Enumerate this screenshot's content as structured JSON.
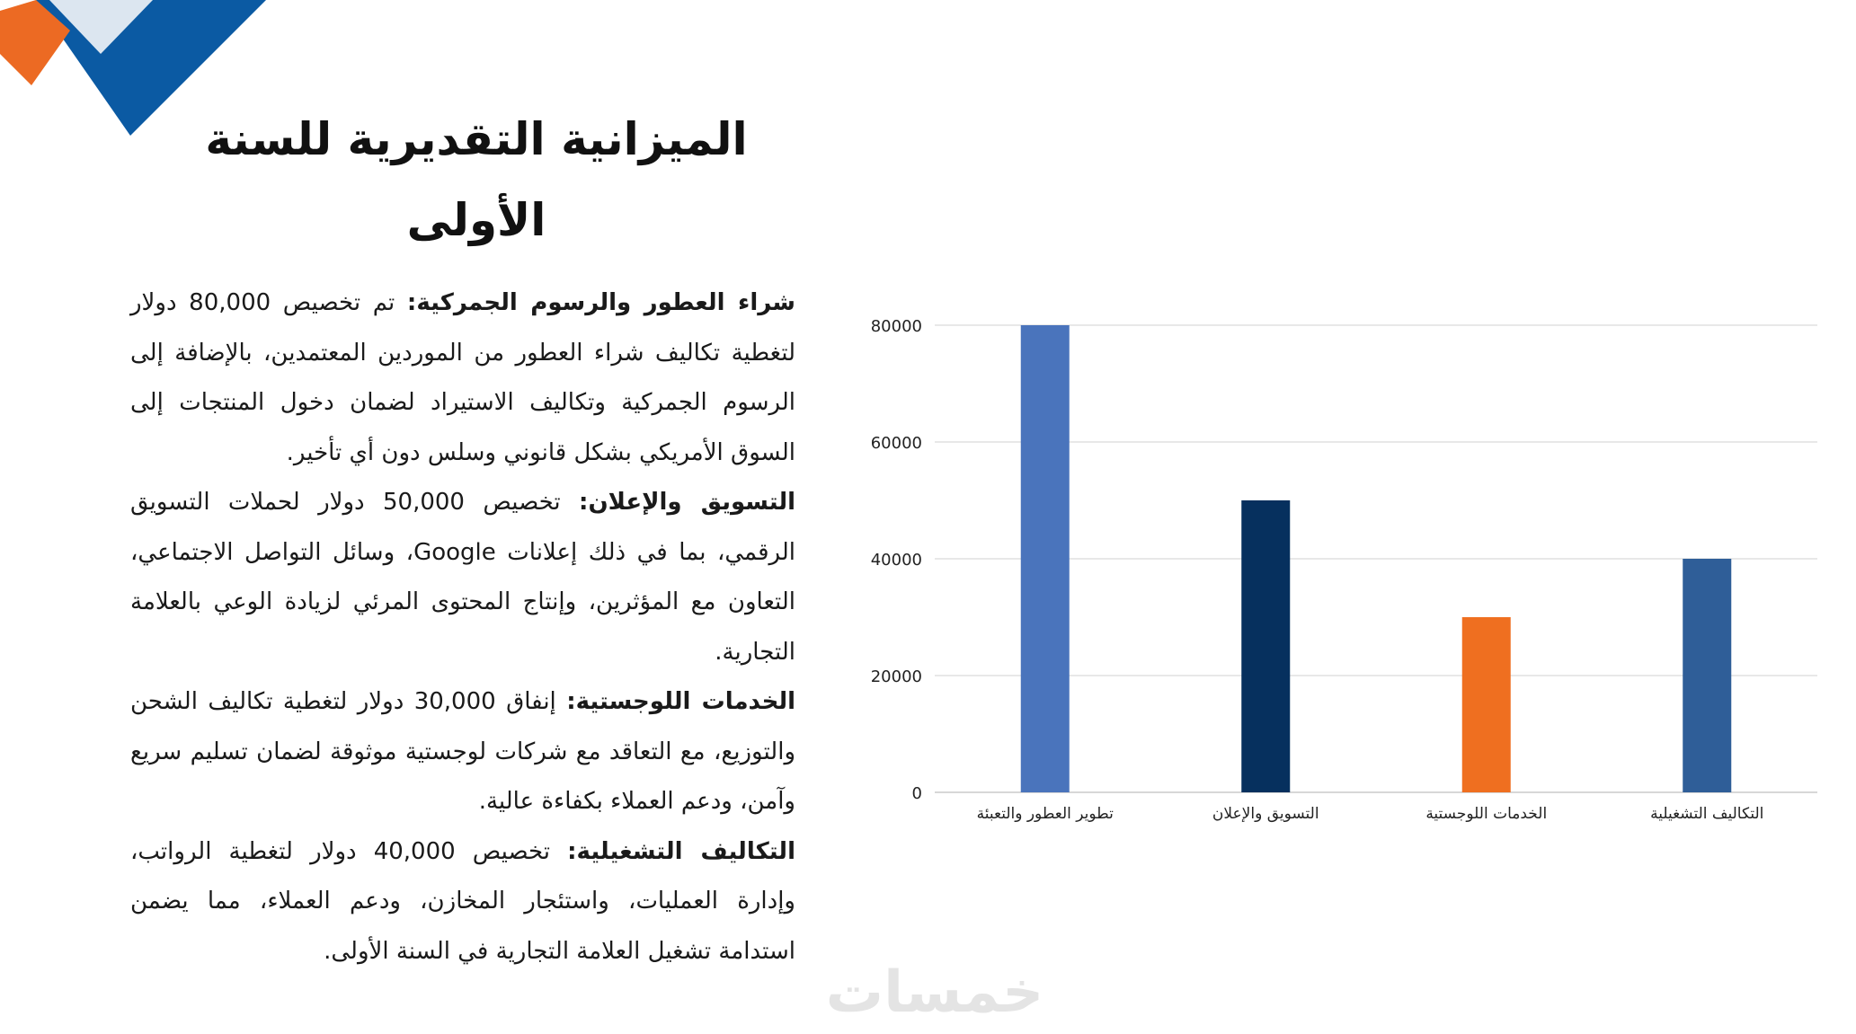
{
  "slide": {
    "title": "الميزانية التقديرية للسنة الأولى",
    "sections": [
      {
        "heading": "شراء العطور والرسوم الجمركية:",
        "text": "تم تخصيص 80,000 دولار لتغطية تكاليف شراء العطور من الموردين المعتمدين، بالإضافة إلى الرسوم الجمركية وتكاليف الاستيراد لضمان دخول المنتجات إلى السوق الأمريكي بشكل قانوني وسلس دون أي تأخير."
      },
      {
        "heading": "التسويق والإعلان:",
        "text": "تخصيص 50,000 دولار لحملات التسويق الرقمي، بما في ذلك إعلانات Google، وسائل التواصل الاجتماعي، التعاون مع المؤثرين، وإنتاج المحتوى المرئي لزيادة الوعي بالعلامة التجارية."
      },
      {
        "heading": "الخدمات اللوجستية:",
        "text": "إنفاق 30,000 دولار لتغطية تكاليف الشحن والتوزيع، مع التعاقد مع شركات لوجستية موثوقة لضمان تسليم سريع وآمن، ودعم العملاء بكفاءة عالية."
      },
      {
        "heading": "التكاليف التشغيلية:",
        "text": "تخصيص 40,000 دولار لتغطية الرواتب، وإدارة العمليات، واستئجار المخازن، ودعم العملاء، مما يضمن استدامة تشغيل العلامة التجارية في السنة الأولى."
      }
    ],
    "watermark": "خمسات",
    "decoration_colors": {
      "orange": "#EC6A23",
      "blue": "#0B5AA3",
      "light": "#DCE6F0"
    }
  },
  "chart_data": {
    "type": "bar",
    "categories": [
      "تطوير العطور والتعبئة",
      "التسويق والإعلان",
      "الخدمات اللوجستية",
      "التكاليف التشغيلية"
    ],
    "values": [
      80000,
      50000,
      30000,
      40000
    ],
    "colors": [
      "#4A74BC",
      "#06305E",
      "#EF6F20",
      "#2F5E98"
    ],
    "ylim": [
      0,
      80000
    ],
    "yticks": [
      0,
      20000,
      40000,
      60000,
      80000
    ],
    "grid": true,
    "legend": "none",
    "title": "",
    "xlabel": "",
    "ylabel": ""
  }
}
